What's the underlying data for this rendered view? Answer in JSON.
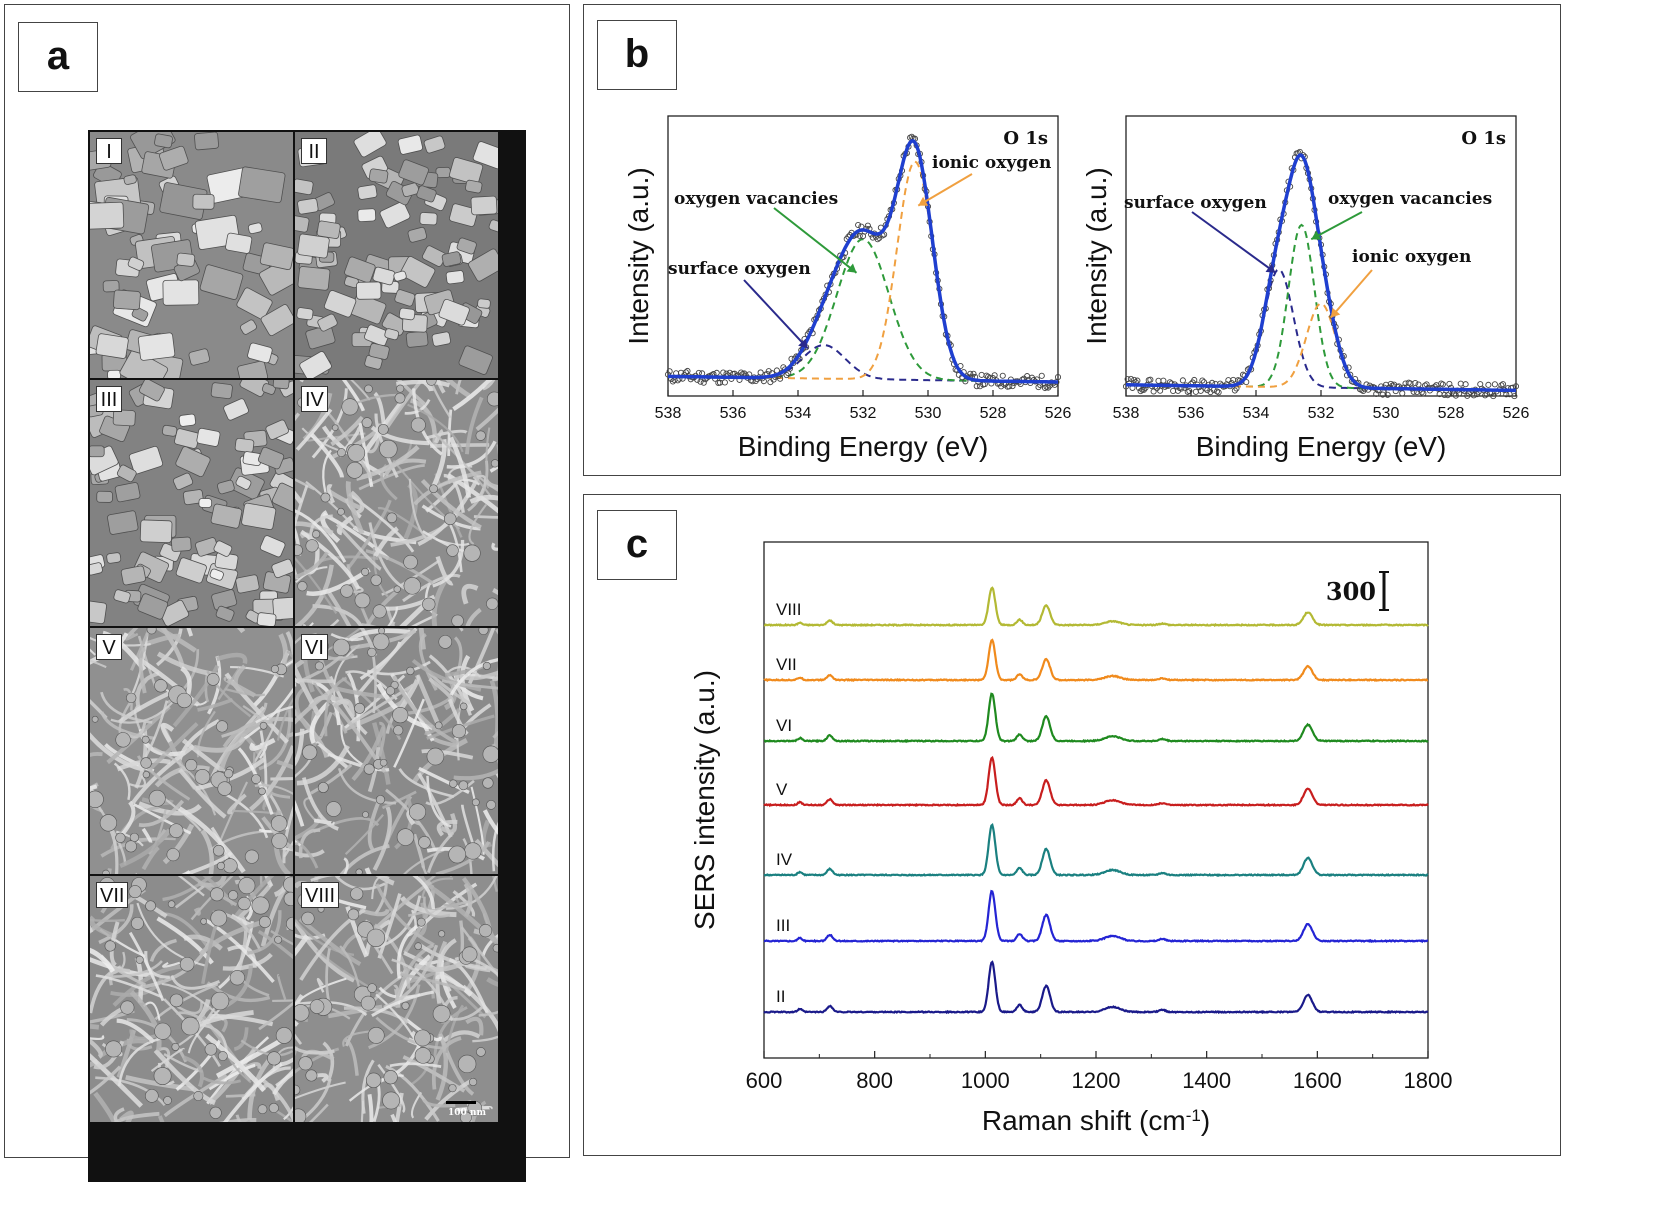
{
  "panels": {
    "a": {
      "letter": "a"
    },
    "b": {
      "letter": "b"
    },
    "c": {
      "letter": "c"
    }
  },
  "sem": {
    "tiles": [
      {
        "label": "I",
        "texture": "hexagonal-crystals",
        "tone": "#8a8a8a"
      },
      {
        "label": "II",
        "texture": "agglomerated-particles",
        "tone": "#7a7a7a"
      },
      {
        "label": "III",
        "texture": "particle-cluster",
        "tone": "#828282"
      },
      {
        "label": "IV",
        "texture": "dense-fibrous",
        "tone": "#8d8d8d"
      },
      {
        "label": "V",
        "texture": "nanowire-network",
        "tone": "#909090"
      },
      {
        "label": "VI",
        "texture": "particle-fiber-mix",
        "tone": "#8a8a8a"
      },
      {
        "label": "VII",
        "texture": "nanowire-network",
        "tone": "#8c8c8c"
      },
      {
        "label": "VIII",
        "texture": "nanowire-network",
        "tone": "#8e8e8e"
      }
    ],
    "scale_bar": "100 nm"
  },
  "chart_data": [
    {
      "id": "xps-left",
      "type": "line",
      "title": "O 1s",
      "xlabel": "Binding Energy (eV)",
      "ylabel": "Intensity (a.u.)",
      "xlim": [
        538,
        526
      ],
      "x_reversed": true,
      "xticks": [
        538,
        536,
        534,
        532,
        530,
        528,
        526
      ],
      "ylim": [
        0,
        1
      ],
      "annotations": [
        "ionic oxygen",
        "oxygen vacancies",
        "surface oxygen"
      ],
      "components": [
        {
          "name": "surface oxygen",
          "center": 533.2,
          "height": 0.12,
          "width": 0.65,
          "color": "#2a2a8c",
          "style": "dashed"
        },
        {
          "name": "oxygen vacancies",
          "center": 532.0,
          "height": 0.5,
          "width": 0.8,
          "color": "#2e9a3a",
          "style": "dashed"
        },
        {
          "name": "ionic oxygen",
          "center": 530.4,
          "height": 0.78,
          "width": 0.55,
          "color": "#f0a040",
          "style": "dashed"
        }
      ],
      "baseline": 0.05,
      "fit_color": "#1f3fcf"
    },
    {
      "id": "xps-right",
      "type": "line",
      "title": "O 1s",
      "xlabel": "Binding Energy (eV)",
      "ylabel": "Intensity (a.u.)",
      "xlim": [
        538,
        526
      ],
      "x_reversed": true,
      "xticks": [
        538,
        536,
        534,
        532,
        530,
        528,
        526
      ],
      "ylim": [
        0,
        1
      ],
      "annotations": [
        "surface oxygen",
        "oxygen vacancies",
        "ionic oxygen"
      ],
      "components": [
        {
          "name": "surface oxygen",
          "center": 533.3,
          "height": 0.42,
          "width": 0.45,
          "color": "#2a2a8c",
          "style": "dashed"
        },
        {
          "name": "oxygen vacancies",
          "center": 532.6,
          "height": 0.58,
          "width": 0.4,
          "color": "#2e9a3a",
          "style": "dashed"
        },
        {
          "name": "ionic oxygen",
          "center": 532.0,
          "height": 0.3,
          "width": 0.45,
          "color": "#f0a040",
          "style": "dashed"
        }
      ],
      "baseline": 0.02,
      "fit_color": "#1f3fcf"
    },
    {
      "id": "sers",
      "type": "line",
      "xlabel": "Raman shift (cm",
      "xlabel_sup": "-1",
      "xlabel_end": ")",
      "ylabel": "SERS intensity (a.u.)",
      "xlim": [
        600,
        1800
      ],
      "xticks": [
        600,
        800,
        1000,
        1200,
        1400,
        1600,
        1800
      ],
      "scale_bar_label": "300",
      "peaks": [
        {
          "x": 665,
          "h": 0.06,
          "w": 4
        },
        {
          "x": 719,
          "h": 0.12,
          "w": 5
        },
        {
          "x": 1012,
          "h": 1.0,
          "w": 6
        },
        {
          "x": 1062,
          "h": 0.14,
          "w": 5
        },
        {
          "x": 1110,
          "h": 0.52,
          "w": 7
        },
        {
          "x": 1230,
          "h": 0.1,
          "w": 14
        },
        {
          "x": 1320,
          "h": 0.04,
          "w": 6
        },
        {
          "x": 1583,
          "h": 0.34,
          "w": 8
        }
      ],
      "series": [
        {
          "name": "VIII",
          "color": "#b3b934",
          "scale": 0.75
        },
        {
          "name": "VII",
          "color": "#f08a1c",
          "scale": 0.8
        },
        {
          "name": "VI",
          "color": "#1f8a1f",
          "scale": 0.95
        },
        {
          "name": "V",
          "color": "#c81e1e",
          "scale": 0.95
        },
        {
          "name": "IV",
          "color": "#1a8080",
          "scale": 1.0
        },
        {
          "name": "III",
          "color": "#2424d4",
          "scale": 1.0
        },
        {
          "name": "II",
          "color": "#1a1a8a",
          "scale": 1.0
        }
      ]
    }
  ]
}
